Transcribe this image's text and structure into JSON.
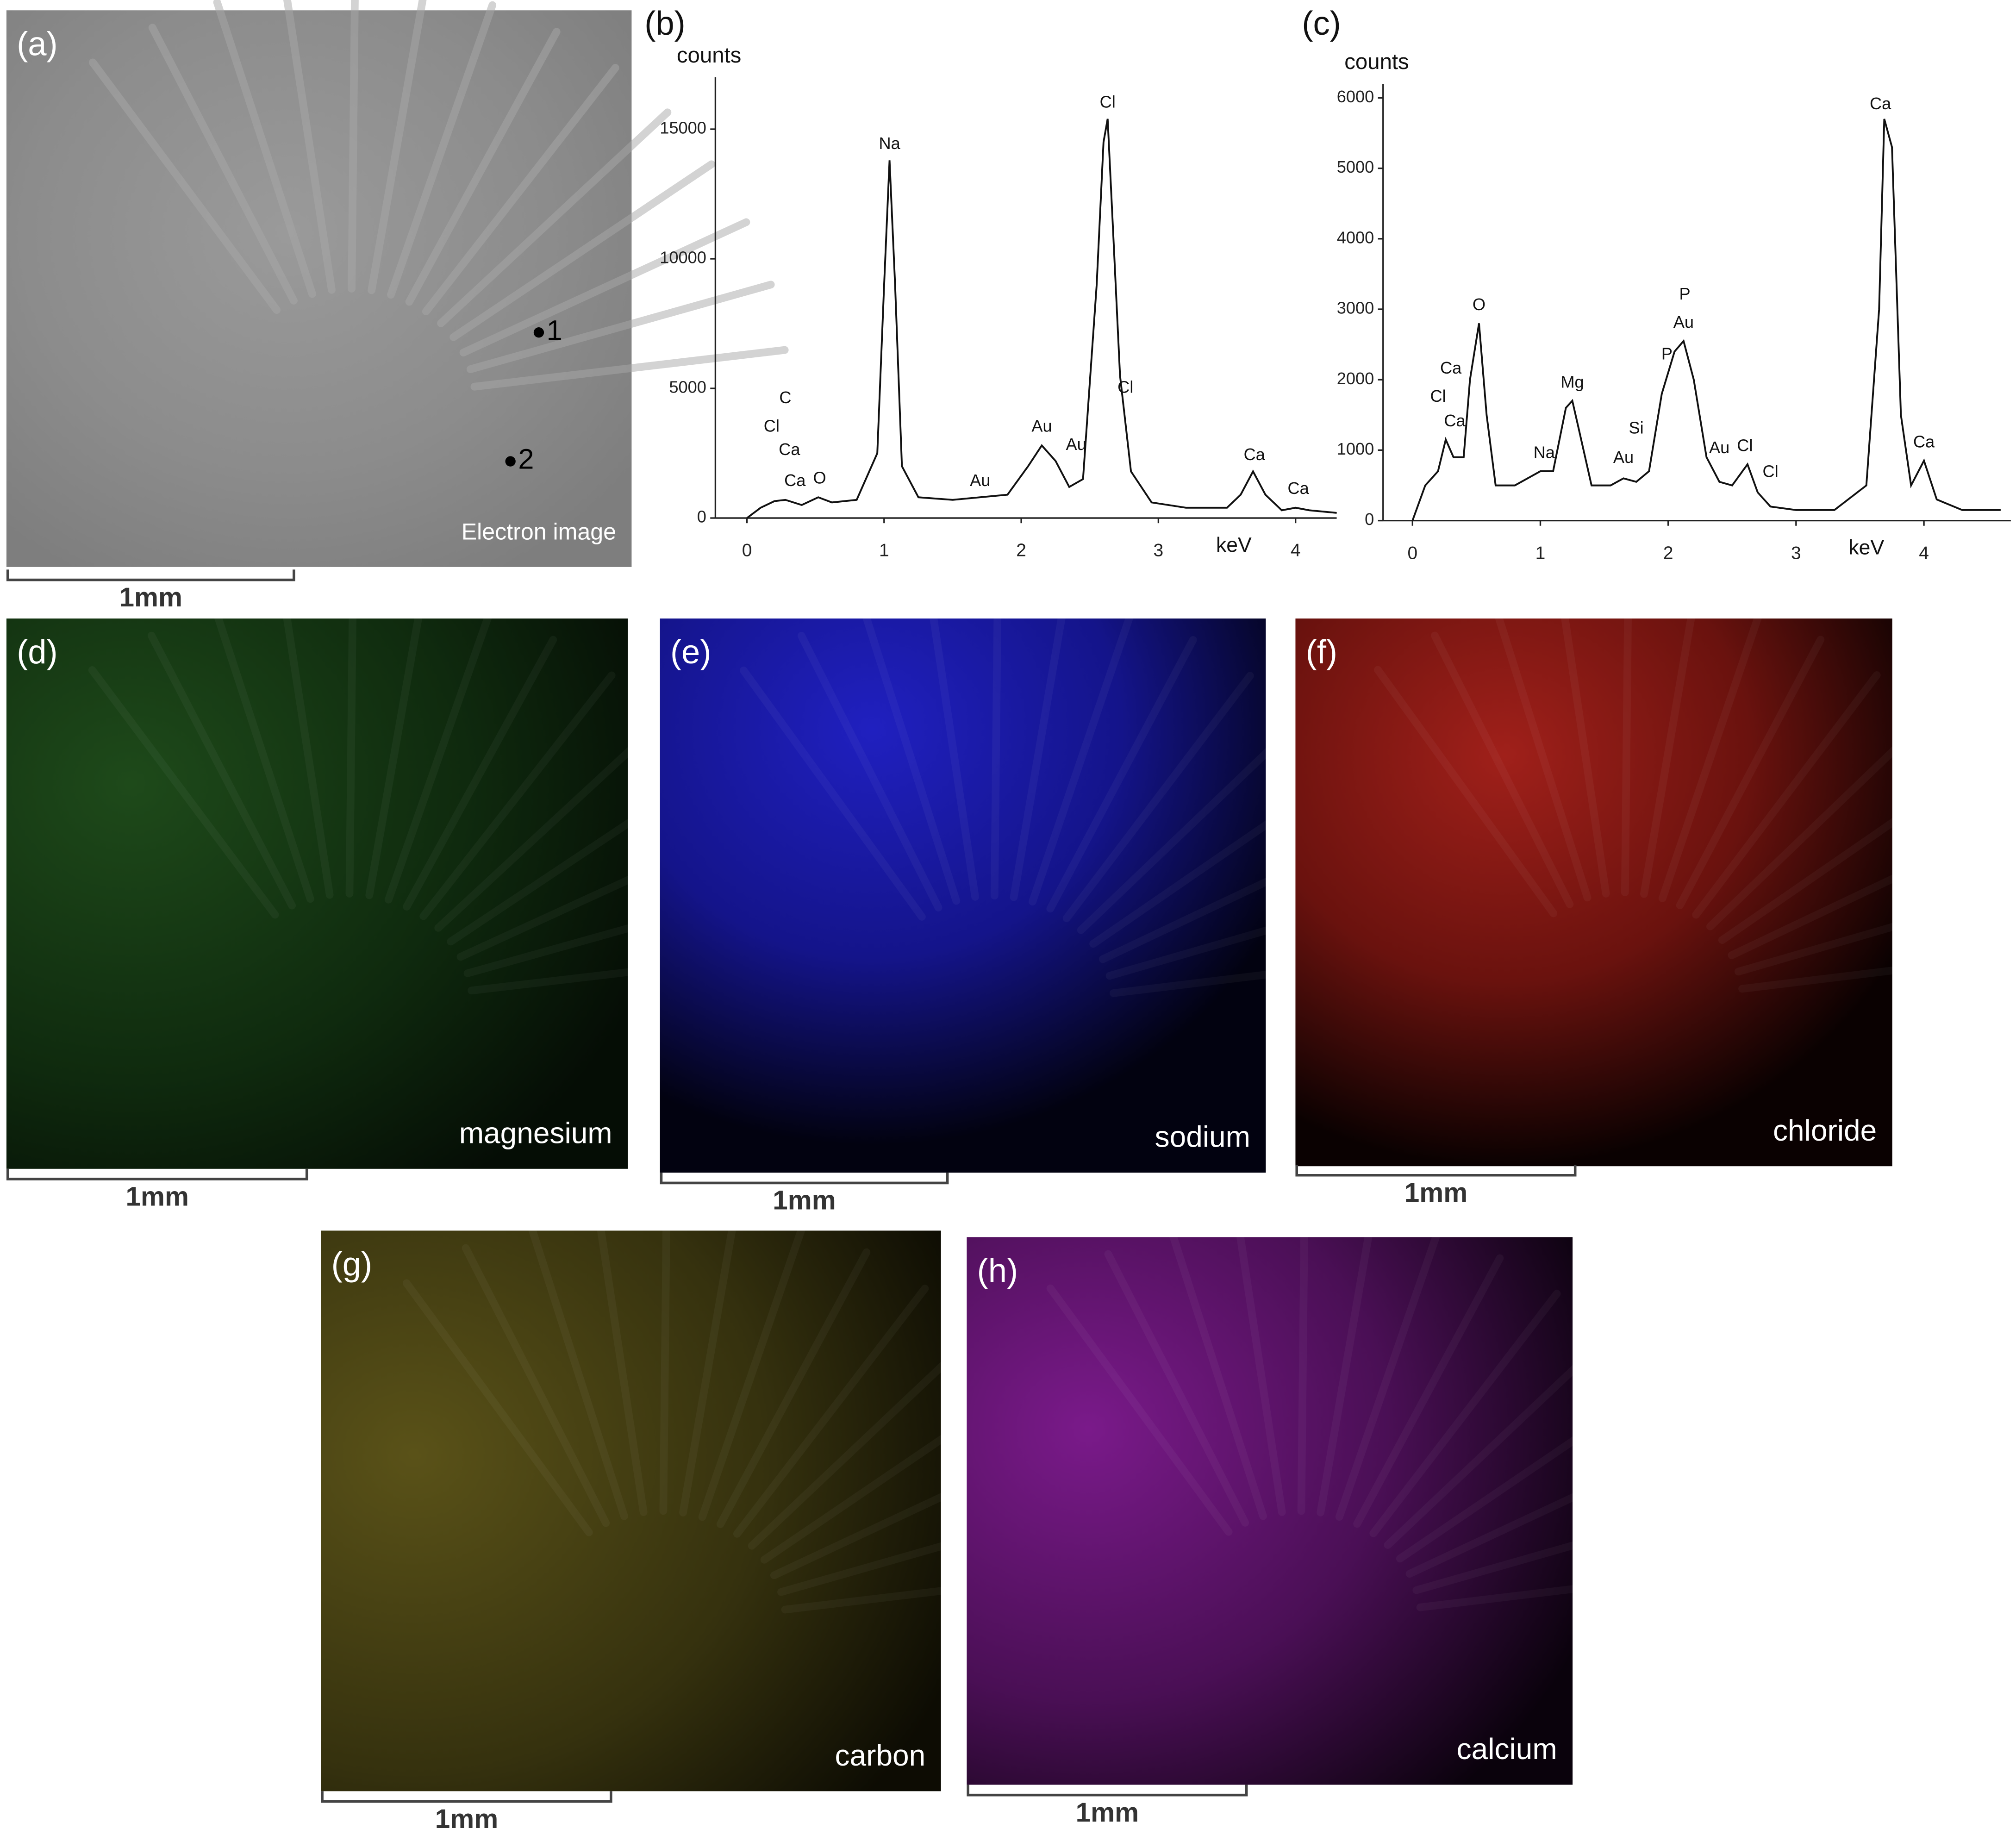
{
  "chart_data": [
    {
      "type": "line",
      "title": "(b)",
      "ylabel": "counts",
      "xlabel": "keV",
      "color": "#111111",
      "xlim": [
        -0.23,
        4.3
      ],
      "ylim": [
        0,
        17000
      ],
      "xticks": [
        0,
        1,
        2,
        3,
        4
      ],
      "yticks": [
        0,
        5000,
        10000,
        15000
      ],
      "x": [
        0,
        0.1,
        0.2,
        0.28,
        0.4,
        0.52,
        0.62,
        0.8,
        0.95,
        1.0,
        1.04,
        1.08,
        1.13,
        1.25,
        1.5,
        1.7,
        1.9,
        2.05,
        2.15,
        2.25,
        2.35,
        2.45,
        2.55,
        2.6,
        2.63,
        2.67,
        2.72,
        2.8,
        2.95,
        3.2,
        3.5,
        3.6,
        3.69,
        3.78,
        3.9,
        4.0,
        4.1,
        4.3
      ],
      "values": [
        0,
        400,
        650,
        700,
        500,
        800,
        600,
        700,
        2500,
        9000,
        13800,
        9000,
        2000,
        800,
        700,
        800,
        900,
        2000,
        2800,
        2200,
        1200,
        1500,
        9000,
        14500,
        15400,
        11000,
        5500,
        1800,
        600,
        400,
        400,
        900,
        1800,
        900,
        300,
        400,
        300,
        200
      ],
      "annotations": [
        {
          "text": "C",
          "x": 0.28,
          "y": 4600
        },
        {
          "text": "Cl",
          "x": 0.18,
          "y": 3500
        },
        {
          "text": "Ca",
          "x": 0.31,
          "y": 2600
        },
        {
          "text": "Ca",
          "x": 0.35,
          "y": 1400
        },
        {
          "text": "O",
          "x": 0.53,
          "y": 1500
        },
        {
          "text": "Na",
          "x": 1.04,
          "y": 14400
        },
        {
          "text": "Au",
          "x": 1.7,
          "y": 1400
        },
        {
          "text": "Au",
          "x": 2.15,
          "y": 3500
        },
        {
          "text": "Au",
          "x": 2.4,
          "y": 2800
        },
        {
          "text": "Cl",
          "x": 2.63,
          "y": 16000
        },
        {
          "text": "Cl",
          "x": 2.76,
          "y": 5000
        },
        {
          "text": "Ca",
          "x": 3.7,
          "y": 2400
        },
        {
          "text": "Ca",
          "x": 4.02,
          "y": 1100
        }
      ]
    },
    {
      "type": "line",
      "title": "(c)",
      "ylabel": "counts",
      "xlabel": "keV",
      "color": "#111111",
      "xlim": [
        -0.23,
        4.68
      ],
      "ylim": [
        0,
        6200
      ],
      "xticks": [
        0,
        1,
        2,
        3,
        4
      ],
      "yticks": [
        0,
        1000,
        2000,
        3000,
        4000,
        5000,
        6000
      ],
      "x": [
        0,
        0.1,
        0.2,
        0.26,
        0.32,
        0.4,
        0.45,
        0.52,
        0.58,
        0.65,
        0.8,
        1.0,
        1.1,
        1.2,
        1.25,
        1.3,
        1.4,
        1.55,
        1.65,
        1.75,
        1.85,
        1.95,
        2.05,
        2.12,
        2.2,
        2.3,
        2.4,
        2.5,
        2.62,
        2.7,
        2.8,
        3.0,
        3.3,
        3.55,
        3.65,
        3.69,
        3.75,
        3.82,
        3.9,
        4.0,
        4.1,
        4.3,
        4.6
      ],
      "values": [
        0,
        500,
        700,
        1150,
        900,
        900,
        2000,
        2800,
        1500,
        500,
        500,
        700,
        700,
        1600,
        1700,
        1300,
        500,
        500,
        600,
        550,
        700,
        1800,
        2400,
        2550,
        2000,
        900,
        550,
        500,
        800,
        400,
        200,
        150,
        150,
        500,
        3000,
        5700,
        5300,
        1500,
        500,
        850,
        300,
        150,
        150
      ],
      "annotations": [
        {
          "text": "Cl",
          "x": 0.2,
          "y": 1750
        },
        {
          "text": "Ca",
          "x": 0.3,
          "y": 2150
        },
        {
          "text": "Ca",
          "x": 0.33,
          "y": 1400
        },
        {
          "text": "O",
          "x": 0.52,
          "y": 3050
        },
        {
          "text": "Na",
          "x": 1.03,
          "y": 950
        },
        {
          "text": "Mg",
          "x": 1.25,
          "y": 1950
        },
        {
          "text": "Si",
          "x": 1.75,
          "y": 1300
        },
        {
          "text": "Au",
          "x": 1.65,
          "y": 880
        },
        {
          "text": "P",
          "x": 1.99,
          "y": 2350
        },
        {
          "text": "Au",
          "x": 2.12,
          "y": 2800
        },
        {
          "text": "P",
          "x": 2.13,
          "y": 3200
        },
        {
          "text": "Au",
          "x": 2.4,
          "y": 1020
        },
        {
          "text": "Cl",
          "x": 2.6,
          "y": 1050
        },
        {
          "text": "Cl",
          "x": 2.8,
          "y": 680
        },
        {
          "text": "Ca",
          "x": 3.66,
          "y": 5900
        },
        {
          "text": "Ca",
          "x": 4.0,
          "y": 1100
        }
      ]
    }
  ],
  "panels": [
    {
      "label": "(a)",
      "caption": "Electron image",
      "scale_bar": "1mm",
      "points": [
        "1",
        "2"
      ]
    },
    {
      "label": "(d)",
      "caption": "magnesium",
      "scale_bar": "1mm"
    },
    {
      "label": "(e)",
      "caption": "sodium",
      "scale_bar": "1mm"
    },
    {
      "label": "(f)",
      "caption": "chloride",
      "scale_bar": "1mm"
    },
    {
      "label": "(g)",
      "caption": "carbon",
      "scale_bar": "1mm"
    },
    {
      "label": "(h)",
      "caption": "calcium",
      "scale_bar": "1mm"
    }
  ]
}
